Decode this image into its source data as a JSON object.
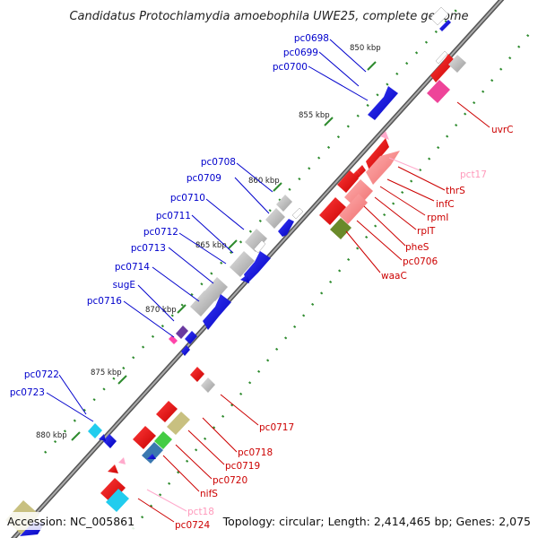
{
  "title": "Candidatus Protochlamydia amoebophila UWE25, complete genome",
  "footer": {
    "accession": "Accession: NC_005861",
    "topology": "Topology: circular; Length: 2,414,465 bp; Genes: 2,075"
  },
  "colors": {
    "forward_gene": "#0000dd",
    "reverse_gene": "#ee0000",
    "trna": "#ffaacc",
    "rrna_like": "#ff8080",
    "other_feature": "#b8b8b8",
    "backbone": "#777777",
    "gc_tick": "#2e8b2e"
  },
  "kbp_ticks": [
    "850 kbp",
    "855 kbp",
    "860 kbp",
    "865 kbp",
    "870 kbp",
    "875 kbp",
    "880 kbp"
  ],
  "left_labels": [
    "pc0698",
    "pc0699",
    "pc0700",
    "pc0708",
    "pc0709",
    "pc0710",
    "pc0711",
    "pc0712",
    "pc0713",
    "pc0714",
    "sugE",
    "pc0716",
    "pc0722",
    "pc0723"
  ],
  "right_labels": [
    "uvrC",
    "pct17",
    "thrS",
    "infC",
    "rpmI",
    "rplT",
    "pheS",
    "pc0706",
    "waaC",
    "pc0717",
    "pc0718",
    "pc0719",
    "pc0720",
    "nifS",
    "pct18",
    "pc0724"
  ]
}
